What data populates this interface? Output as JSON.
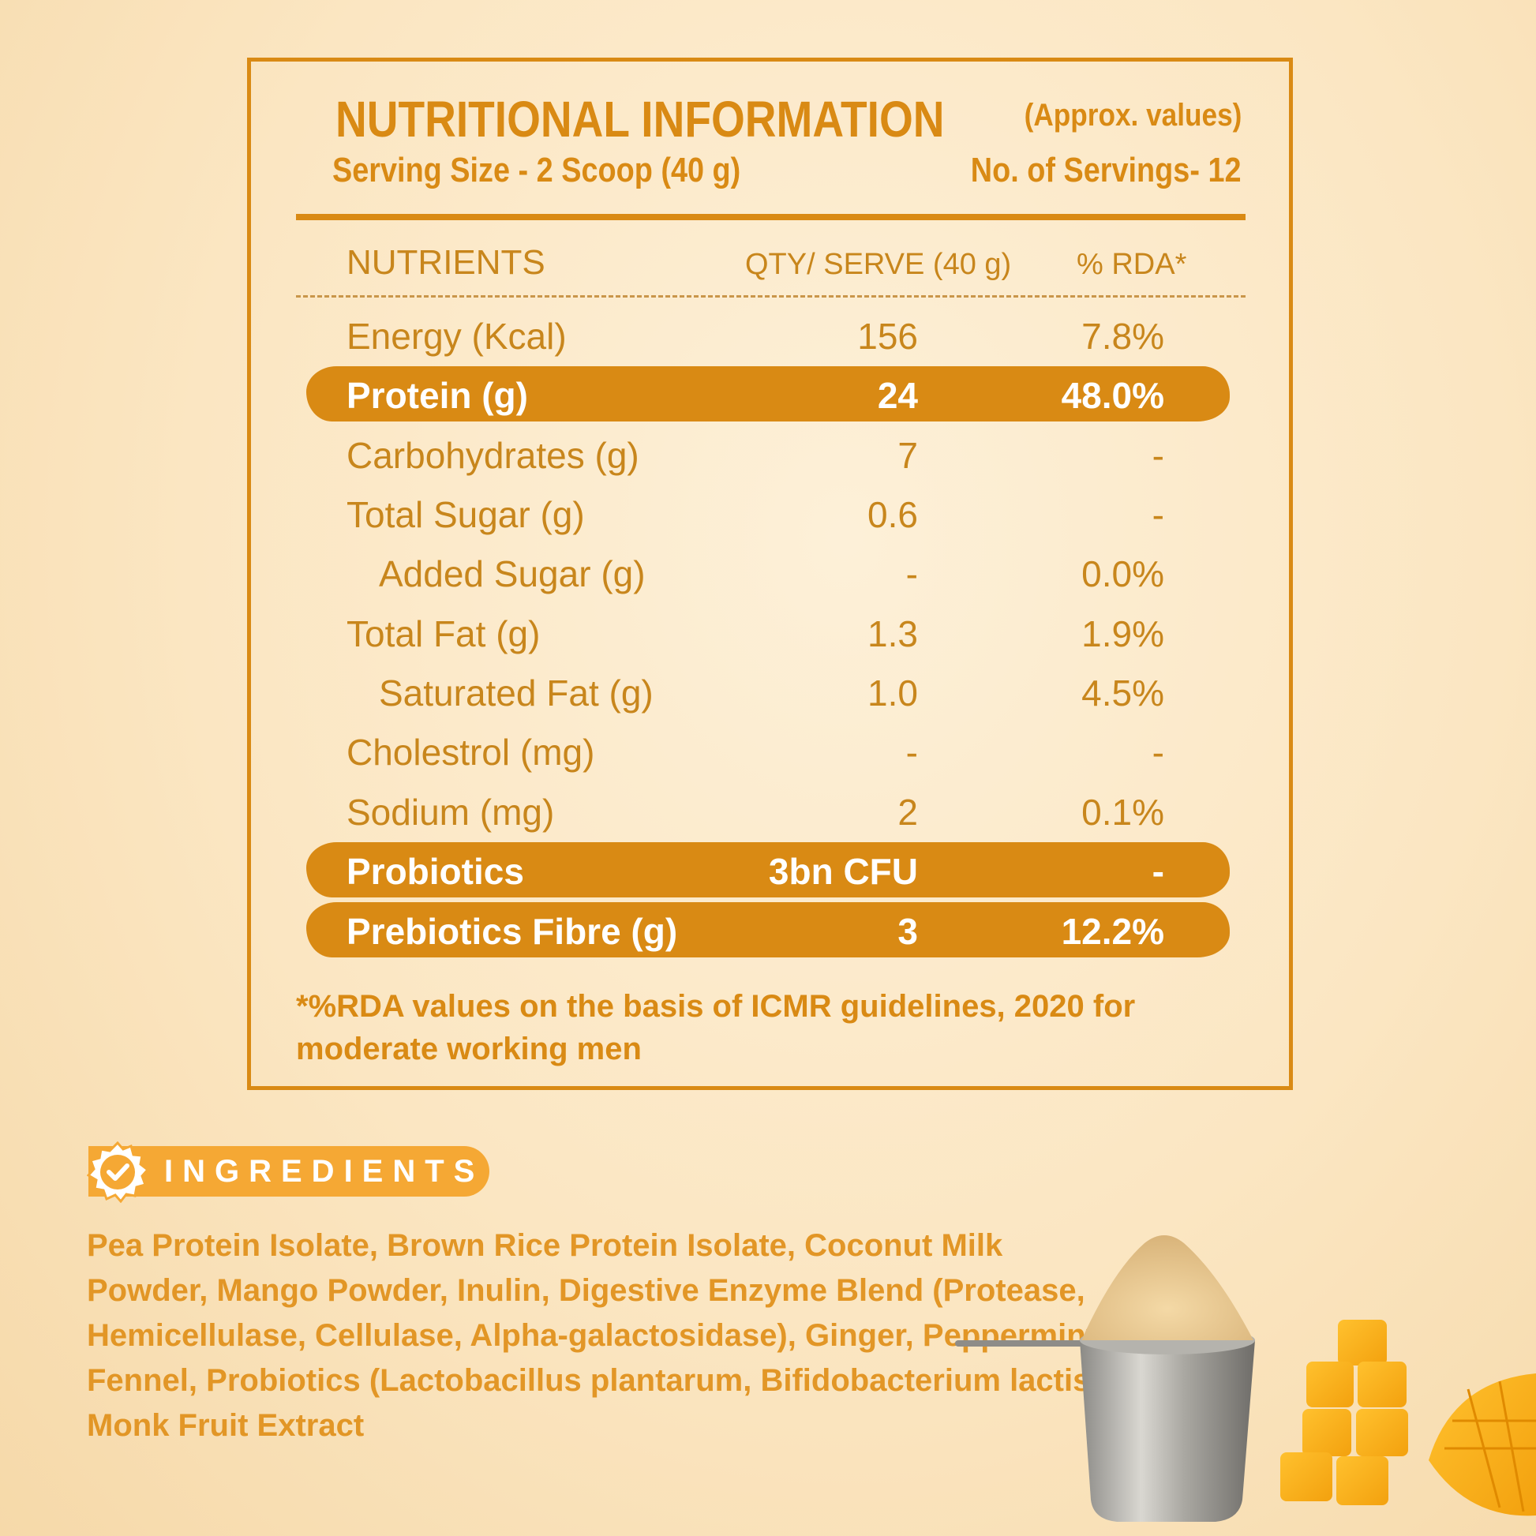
{
  "panel": {
    "title": "NUTRITIONAL INFORMATION",
    "approx": "(Approx. values)",
    "serving_size": "Serving Size - 2 Scoop (40 g)",
    "servings": "No. of Servings- 12",
    "headers": {
      "nutrient": "NUTRIENTS",
      "qty": "QTY/ SERVE (40 g)",
      "rda": "% RDA*"
    },
    "rows": [
      {
        "name": "Energy (Kcal)",
        "qty": "156",
        "rda": "7.8%"
      },
      {
        "name": "Protein (g)",
        "qty": "24",
        "rda": "48.0%"
      },
      {
        "name": "Carbohydrates (g)",
        "qty": "7",
        "rda": "-"
      },
      {
        "name": "Total Sugar (g)",
        "qty": "0.6",
        "rda": "-"
      },
      {
        "name": "Added Sugar (g)",
        "qty": "-",
        "rda": "0.0%"
      },
      {
        "name": "Total Fat (g)",
        "qty": "1.3",
        "rda": "1.9%"
      },
      {
        "name": "Saturated Fat (g)",
        "qty": "1.0",
        "rda": "4.5%"
      },
      {
        "name": "Cholestrol (mg)",
        "qty": "-",
        "rda": "-"
      },
      {
        "name": "Sodium (mg)",
        "qty": "2",
        "rda": "0.1%"
      },
      {
        "name": "Probiotics",
        "qty": "3bn CFU",
        "rda": "-"
      },
      {
        "name": "Prebiotics Fibre (g)",
        "qty": "3",
        "rda": "12.2%"
      }
    ],
    "footnote": "*%RDA values on the basis of ICMR guidelines, 2020 for moderate working men"
  },
  "ingredients": {
    "label": "INGREDIENTS",
    "text": "Pea Protein Isolate, Brown Rice Protein Isolate, Coconut Milk Powder, Mango Powder, Inulin, Digestive Enzyme Blend (Protease, Hemicellulase, Cellulase, Alpha-galactosidase), Ginger, Peppermint, Fennel, Probiotics (Lactobacillus plantarum, Bifidobacterium lactis), Monk Fruit Extract"
  },
  "colors": {
    "accent": "#d98a14",
    "text": "#c8861c",
    "badge": "#f5a834",
    "background": "#fbe6c2"
  }
}
